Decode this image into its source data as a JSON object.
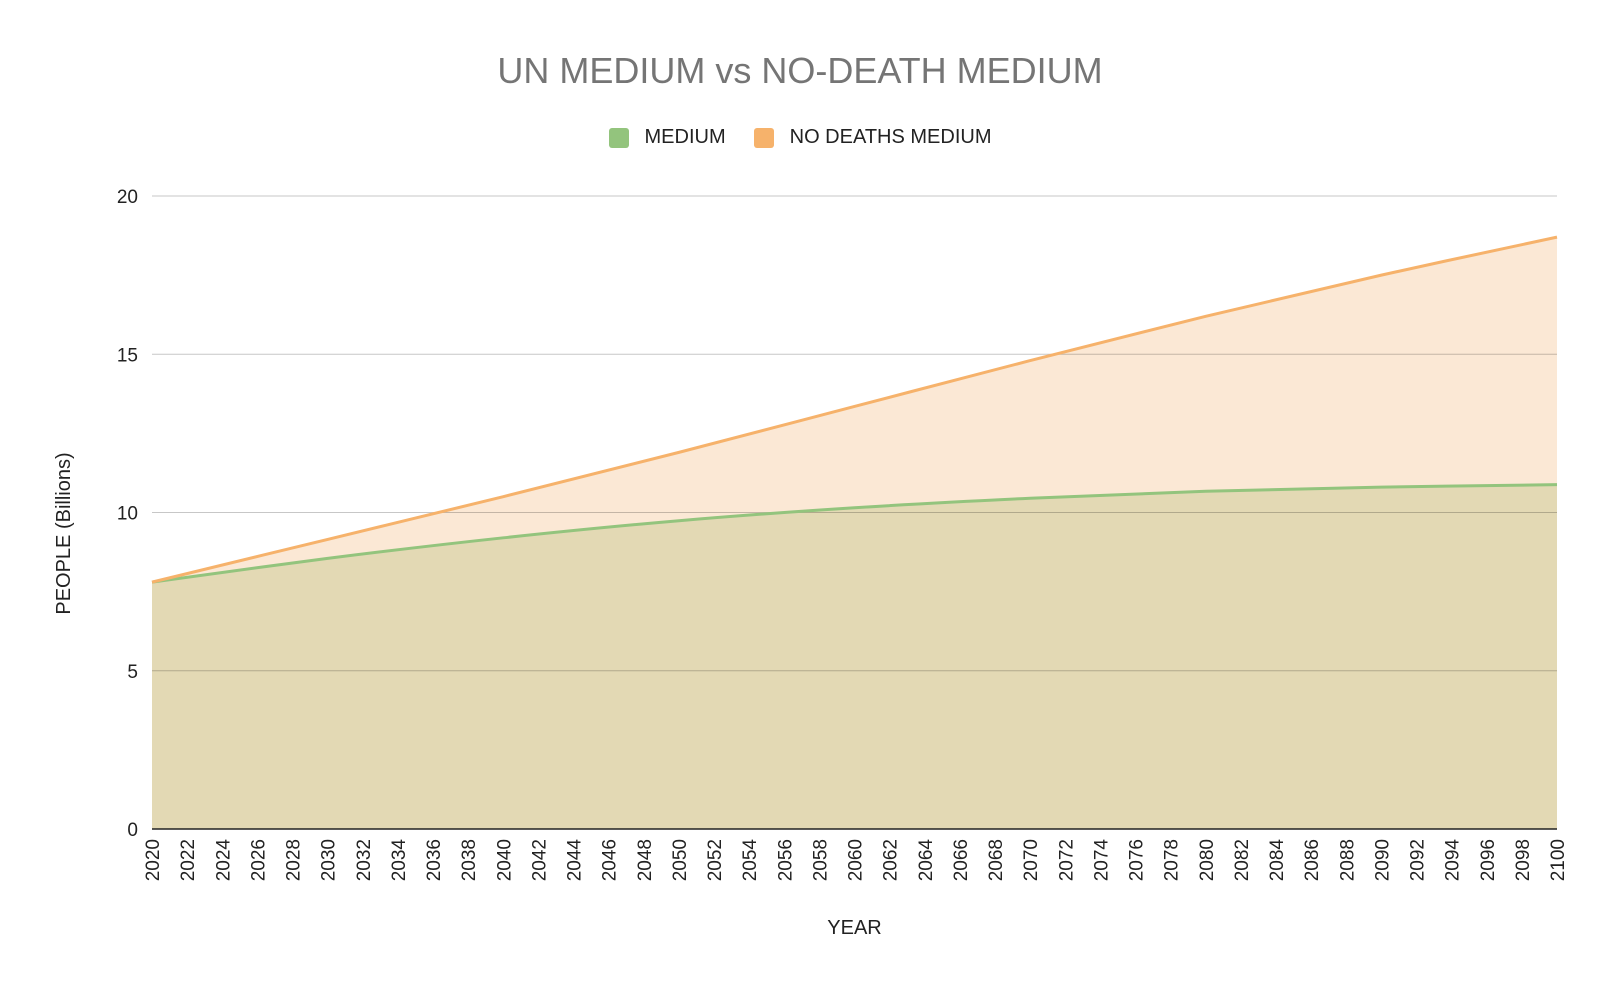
{
  "chart_data": {
    "type": "area",
    "title": "UN MEDIUM vs NO-DEATH MEDIUM",
    "xlabel": "YEAR",
    "ylabel": "PEOPLE (Billions)",
    "ylim": [
      0,
      20
    ],
    "yticks": [
      0,
      5,
      10,
      15,
      20
    ],
    "xlim": [
      2020,
      2100
    ],
    "xtick_step": 2,
    "grid": true,
    "legend": "top-center",
    "x": [
      2020,
      2030,
      2040,
      2050,
      2060,
      2070,
      2080,
      2090,
      2100
    ],
    "series": [
      {
        "name": "MEDIUM",
        "color": "#93c47d",
        "fill": "#e3d9b4",
        "values": [
          7.8,
          8.55,
          9.2,
          9.74,
          10.15,
          10.45,
          10.67,
          10.8,
          10.88
        ]
      },
      {
        "name": "NO DEATHS MEDIUM",
        "color": "#f6b26b",
        "fill": "#fbe8d5",
        "values": [
          7.8,
          9.15,
          10.5,
          11.9,
          13.35,
          14.8,
          16.2,
          17.5,
          18.7
        ]
      }
    ]
  }
}
